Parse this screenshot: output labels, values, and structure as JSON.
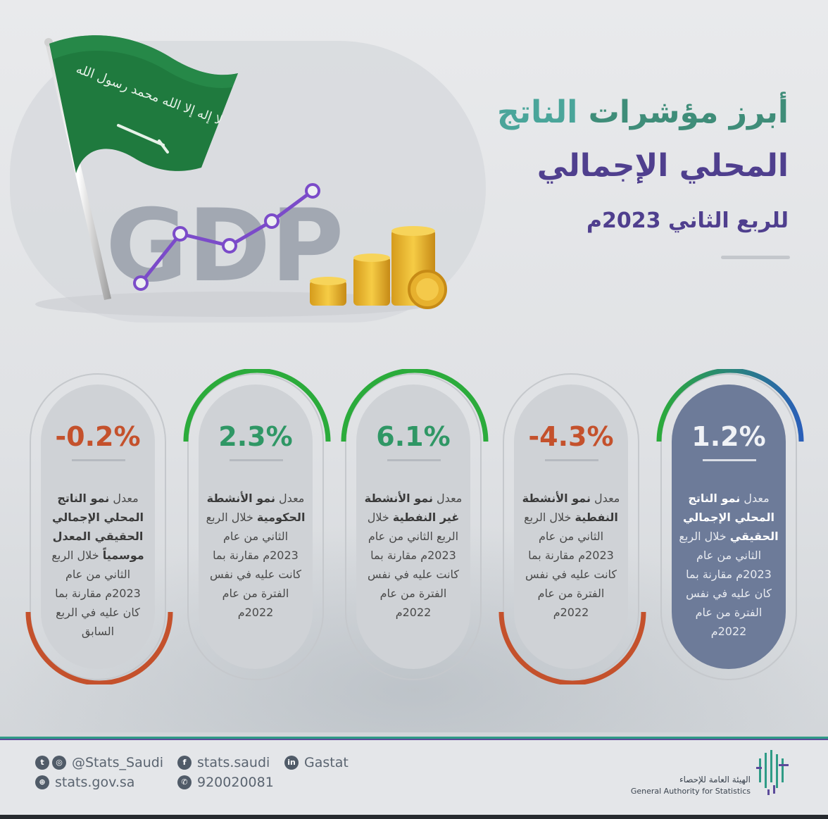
{
  "hero": {
    "gdp_word": "GDP",
    "flag_script": "لا إله إلا الله محمد رسول الله"
  },
  "header": {
    "title_line1_a": "أبرز مؤشرات",
    "title_line1_b": "الناتج",
    "title_line2": "المحلي الإجمالي",
    "subtitle_prefix": "للربع الثاني",
    "subtitle_year": "2023م"
  },
  "cards": [
    {
      "value": "1.2%",
      "sign": "positive",
      "highlight": true,
      "desc_pre": "معدل ",
      "desc_bold": "نمو الناتج المحلي الإجمالي الحقيقي",
      "desc_post": " خلال الربع الثاني من عام 2023م مقارنة بما كان عليه في نفس الفترة من عام 2022م"
    },
    {
      "value": "-4.3%",
      "sign": "negative",
      "highlight": false,
      "desc_pre": "معدل ",
      "desc_bold": "نمو الأنشطة النفطية",
      "desc_post": " خلال الربع الثاني من عام 2023م مقارنة بما كانت عليه في نفس الفترة من عام 2022م"
    },
    {
      "value": "6.1%",
      "sign": "positive",
      "highlight": false,
      "desc_pre": "معدل ",
      "desc_bold": "نمو الأنشطة غير النفطية",
      "desc_post": " خلال الربع الثاني من عام 2023م مقارنة بما كانت عليه في نفس الفترة من عام 2022م"
    },
    {
      "value": "2.3%",
      "sign": "positive",
      "highlight": false,
      "desc_pre": "معدل ",
      "desc_bold": "نمو الأنشطة الحكومية",
      "desc_post": " خلال الربع الثاني من عام 2023م مقارنة بما كانت عليه في نفس الفترة من عام 2022م"
    },
    {
      "value": "-0.2%",
      "sign": "negative",
      "highlight": false,
      "desc_pre": "معدل ",
      "desc_bold": "نمو الناتج المحلي الإجمالي الحقيقي المعدل موسمياً",
      "desc_post": " خلال الربع الثاني من عام 2023م مقارنة بما كان عليه في الربع السابق"
    }
  ],
  "colors": {
    "positive": "#2f9765",
    "negative": "#c4512c",
    "arc_green": "#2bab3b",
    "arc_blue": "#2a5fb8",
    "arc_orange": "#c4512c",
    "highlight_bg": "#6d7b99"
  },
  "footer": {
    "twitter_handle": "@Stats_Saudi",
    "website": "stats.gov.sa",
    "facebook": "stats.saudi",
    "phone": "920020081",
    "linkedin": "Gastat",
    "org_name_ar": "الهيئة العامة للإحصاء",
    "org_name_en": "General Authority for Statistics",
    "icons": [
      "twitter-icon",
      "instagram-icon",
      "globe-icon",
      "facebook-icon",
      "phone-icon",
      "linkedin-icon"
    ]
  }
}
